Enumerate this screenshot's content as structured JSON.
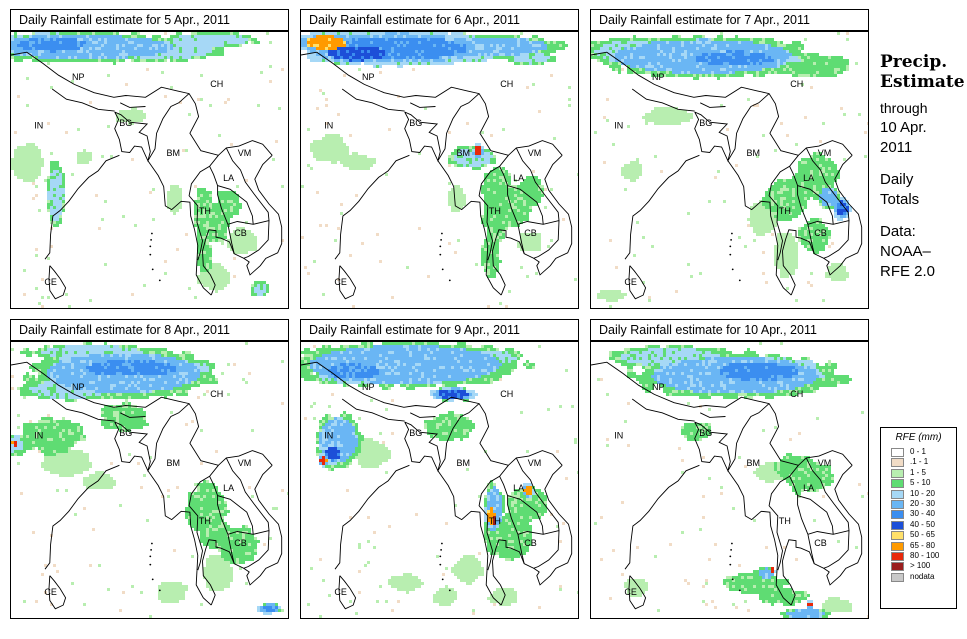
{
  "panels": [
    {
      "title": "Daily Rainfall estimate for  5 Apr., 2011"
    },
    {
      "title": "Daily Rainfall estimate for  6 Apr., 2011"
    },
    {
      "title": "Daily Rainfall estimate for  7 Apr., 2011"
    },
    {
      "title": "Daily Rainfall estimate for  8 Apr., 2011"
    },
    {
      "title": "Daily Rainfall estimate for  9 Apr., 2011"
    },
    {
      "title": "Daily Rainfall estimate for  10 Apr., 2011"
    }
  ],
  "countries": [
    {
      "code": "NP",
      "lon": 83.5,
      "lat": 29.8
    },
    {
      "code": "CH",
      "lon": 101.0,
      "lat": 29.0
    },
    {
      "code": "IN",
      "lon": 78.5,
      "lat": 24.5
    },
    {
      "code": "BG",
      "lon": 89.5,
      "lat": 24.8
    },
    {
      "code": "BM",
      "lon": 95.5,
      "lat": 21.5
    },
    {
      "code": "VM",
      "lon": 104.5,
      "lat": 21.5
    },
    {
      "code": "LA",
      "lon": 102.5,
      "lat": 18.8
    },
    {
      "code": "TH",
      "lon": 99.5,
      "lat": 15.2
    },
    {
      "code": "CB",
      "lon": 104.0,
      "lat": 12.8
    },
    {
      "code": "CE",
      "lon": 80.0,
      "lat": 7.5
    }
  ],
  "side": {
    "title_line1": "Precip.",
    "title_line2": "Estimate",
    "through": "through",
    "date_line1": "10 Apr.",
    "date_line2": "2011",
    "totals_line1": "Daily",
    "totals_line2": "Totals",
    "data_line1": "Data:",
    "data_line2": "NOAA–",
    "data_line3": "RFE 2.0"
  },
  "legend": {
    "title": "RFE (mm)",
    "items": [
      {
        "label": "0 - 1",
        "color": "#ffffff"
      },
      {
        "label": ".1 - 1",
        "color": "#f1dcc6"
      },
      {
        "label": "1 - 5",
        "color": "#b8eeb0"
      },
      {
        "label": "5 - 10",
        "color": "#5fdc73"
      },
      {
        "label": "10 - 20",
        "color": "#a6d8f6"
      },
      {
        "label": "20 - 30",
        "color": "#6ab6f4"
      },
      {
        "label": "30 - 40",
        "color": "#3b8ef0"
      },
      {
        "label": "40 - 50",
        "color": "#1c4fd8"
      },
      {
        "label": "50 - 65",
        "color": "#ffe06a"
      },
      {
        "label": "65 - 80",
        "color": "#ff9a00"
      },
      {
        "label": "80 - 100",
        "color": "#e8280a"
      },
      {
        "label": "> 100",
        "color": "#9a1e1e"
      },
      {
        "label": "nodata",
        "color": "#c8c8c8"
      }
    ]
  }
}
